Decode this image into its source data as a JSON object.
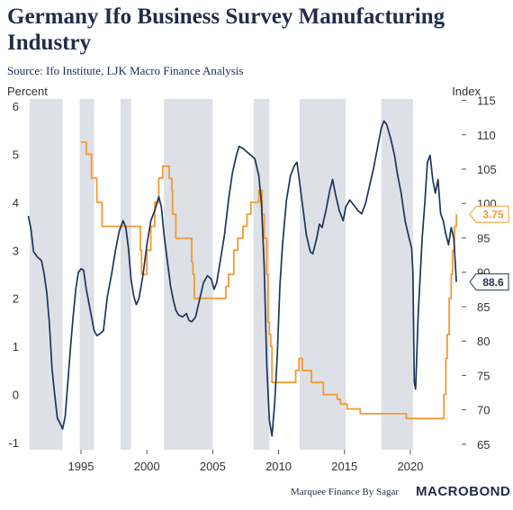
{
  "chart_data": {
    "type": "line",
    "title": "Germany Ifo Business Survey Manufacturing Industry",
    "subtitle": "Source: Ifo Institute, LJK Macro Finance Analysis",
    "left_axis": {
      "label": "Percent",
      "ylim": [
        -1.15,
        6.15
      ],
      "ticks": [
        -1,
        0,
        1,
        2,
        3,
        4,
        5,
        6
      ]
    },
    "right_axis": {
      "label": "Index",
      "ylim": [
        64.2,
        115.2
      ],
      "ticks": [
        65,
        70,
        75,
        80,
        85,
        90,
        95,
        100,
        105,
        110,
        115
      ]
    },
    "x_axis": {
      "xlim": [
        1990.9,
        2023.9
      ],
      "ticks": [
        1995,
        2000,
        2005,
        2010,
        2015,
        2020
      ]
    },
    "grid": false,
    "shaded_periods": [
      [
        1991.1,
        1993.6
      ],
      [
        1994.9,
        1996.0
      ],
      [
        1998.0,
        1998.8
      ],
      [
        2001.3,
        2005.0
      ],
      [
        2008.1,
        2009.3
      ],
      [
        2011.6,
        2015.1
      ],
      [
        2017.8,
        2020.2
      ]
    ],
    "series": [
      {
        "name": "",
        "axis": "left",
        "color": "#f39a32",
        "step": true,
        "last_label": "3.75",
        "points": [
          [
            1995.0,
            5.25
          ],
          [
            1995.4,
            5.0
          ],
          [
            1995.8,
            4.5
          ],
          [
            1996.2,
            4.0
          ],
          [
            1996.6,
            3.5
          ],
          [
            1999.3,
            3.5
          ],
          [
            1999.5,
            3.0
          ],
          [
            1999.6,
            2.5
          ],
          [
            2000.0,
            3.0
          ],
          [
            2000.3,
            3.5
          ],
          [
            2000.6,
            4.0
          ],
          [
            2000.9,
            4.5
          ],
          [
            2001.2,
            4.75
          ],
          [
            2001.7,
            4.5
          ],
          [
            2001.9,
            4.25
          ],
          [
            2001.95,
            3.75
          ],
          [
            2002.2,
            3.25
          ],
          [
            2003.4,
            2.75
          ],
          [
            2003.5,
            2.5
          ],
          [
            2003.6,
            2.0
          ],
          [
            2005.9,
            2.0
          ],
          [
            2006.0,
            2.25
          ],
          [
            2006.2,
            2.5
          ],
          [
            2006.6,
            3.0
          ],
          [
            2006.9,
            3.25
          ],
          [
            2007.3,
            3.5
          ],
          [
            2007.6,
            3.75
          ],
          [
            2007.9,
            4.0
          ],
          [
            2008.4,
            4.0
          ],
          [
            2008.5,
            4.25
          ],
          [
            2008.75,
            3.75
          ],
          [
            2008.9,
            3.25
          ],
          [
            2009.1,
            2.5
          ],
          [
            2009.2,
            1.5
          ],
          [
            2009.3,
            1.25
          ],
          [
            2009.4,
            1.0
          ],
          [
            2009.5,
            0.25
          ],
          [
            2011.3,
            0.5
          ],
          [
            2011.55,
            0.75
          ],
          [
            2011.8,
            0.5
          ],
          [
            2012.5,
            0.25
          ],
          [
            2013.4,
            0.0
          ],
          [
            2014.45,
            -0.1
          ],
          [
            2014.7,
            -0.2
          ],
          [
            2015.2,
            -0.3
          ],
          [
            2016.2,
            -0.4
          ],
          [
            2019.7,
            -0.5
          ],
          [
            2022.5,
            -0.5
          ],
          [
            2022.55,
            0.0
          ],
          [
            2022.7,
            0.75
          ],
          [
            2022.8,
            1.25
          ],
          [
            2022.95,
            2.0
          ],
          [
            2023.1,
            2.5
          ],
          [
            2023.2,
            3.0
          ],
          [
            2023.35,
            3.5
          ],
          [
            2023.5,
            3.75
          ]
        ]
      },
      {
        "name": "",
        "axis": "right",
        "color": "#1f3558",
        "step": false,
        "last_label": "88.6",
        "points": [
          [
            1991.0,
            98.2
          ],
          [
            1991.2,
            96.3
          ],
          [
            1991.4,
            93.0
          ],
          [
            1991.7,
            92.2
          ],
          [
            1992.0,
            91.7
          ],
          [
            1992.2,
            89.8
          ],
          [
            1992.4,
            87.0
          ],
          [
            1992.6,
            82.5
          ],
          [
            1992.8,
            76.0
          ],
          [
            1993.0,
            72.3
          ],
          [
            1993.2,
            68.8
          ],
          [
            1993.4,
            68.1
          ],
          [
            1993.6,
            67.2
          ],
          [
            1993.8,
            69.0
          ],
          [
            1994.0,
            74.0
          ],
          [
            1994.2,
            79.0
          ],
          [
            1994.4,
            83.5
          ],
          [
            1994.6,
            87.5
          ],
          [
            1994.8,
            90.0
          ],
          [
            1995.0,
            90.5
          ],
          [
            1995.2,
            90.3
          ],
          [
            1995.4,
            87.5
          ],
          [
            1995.7,
            84.5
          ],
          [
            1996.0,
            81.5
          ],
          [
            1996.2,
            80.8
          ],
          [
            1996.4,
            81.0
          ],
          [
            1996.7,
            81.5
          ],
          [
            1997.0,
            86.5
          ],
          [
            1997.3,
            89.5
          ],
          [
            1997.6,
            93.0
          ],
          [
            1997.9,
            96.0
          ],
          [
            1998.2,
            97.5
          ],
          [
            1998.4,
            96.5
          ],
          [
            1998.6,
            93.5
          ],
          [
            1998.8,
            89.0
          ],
          [
            1999.0,
            86.5
          ],
          [
            1999.2,
            85.3
          ],
          [
            1999.4,
            86.2
          ],
          [
            1999.7,
            89.5
          ],
          [
            2000.0,
            94.0
          ],
          [
            2000.3,
            97.5
          ],
          [
            2000.6,
            99.0
          ],
          [
            2000.9,
            101.0
          ],
          [
            2001.1,
            99.5
          ],
          [
            2001.3,
            95.5
          ],
          [
            2001.6,
            91.0
          ],
          [
            2001.8,
            88.0
          ],
          [
            2002.0,
            86.0
          ],
          [
            2002.2,
            84.5
          ],
          [
            2002.4,
            83.8
          ],
          [
            2002.7,
            83.5
          ],
          [
            2003.0,
            84.0
          ],
          [
            2003.2,
            83.0
          ],
          [
            2003.4,
            82.8
          ],
          [
            2003.7,
            83.5
          ],
          [
            2004.0,
            86.0
          ],
          [
            2004.3,
            88.5
          ],
          [
            2004.6,
            89.5
          ],
          [
            2004.9,
            89.0
          ],
          [
            2005.1,
            87.5
          ],
          [
            2005.3,
            88.5
          ],
          [
            2005.6,
            92.0
          ],
          [
            2005.9,
            95.5
          ],
          [
            2006.2,
            100.5
          ],
          [
            2006.5,
            104.5
          ],
          [
            2006.8,
            107.0
          ],
          [
            2007.0,
            108.3
          ],
          [
            2007.3,
            108.0
          ],
          [
            2007.6,
            107.5
          ],
          [
            2007.9,
            107.0
          ],
          [
            2008.2,
            106.5
          ],
          [
            2008.5,
            104.0
          ],
          [
            2008.7,
            100.0
          ],
          [
            2008.9,
            91.0
          ],
          [
            2009.1,
            76.5
          ],
          [
            2009.3,
            68.5
          ],
          [
            2009.5,
            66.2
          ],
          [
            2009.7,
            71.0
          ],
          [
            2009.9,
            78.0
          ],
          [
            2010.1,
            88.0
          ],
          [
            2010.3,
            94.0
          ],
          [
            2010.6,
            100.5
          ],
          [
            2010.9,
            104.0
          ],
          [
            2011.2,
            105.5
          ],
          [
            2011.4,
            106.0
          ],
          [
            2011.6,
            103.0
          ],
          [
            2011.9,
            98.5
          ],
          [
            2012.1,
            95.5
          ],
          [
            2012.4,
            93.0
          ],
          [
            2012.6,
            92.7
          ],
          [
            2012.9,
            95.0
          ],
          [
            2013.1,
            97.0
          ],
          [
            2013.3,
            96.5
          ],
          [
            2013.6,
            99.0
          ],
          [
            2013.9,
            102.0
          ],
          [
            2014.1,
            103.5
          ],
          [
            2014.3,
            101.5
          ],
          [
            2014.6,
            99.0
          ],
          [
            2014.9,
            97.5
          ],
          [
            2015.1,
            99.5
          ],
          [
            2015.4,
            100.5
          ],
          [
            2015.7,
            99.8
          ],
          [
            2016.0,
            99.0
          ],
          [
            2016.3,
            98.5
          ],
          [
            2016.6,
            100.0
          ],
          [
            2016.9,
            102.5
          ],
          [
            2017.2,
            105.0
          ],
          [
            2017.5,
            108.0
          ],
          [
            2017.8,
            111.0
          ],
          [
            2018.0,
            112.0
          ],
          [
            2018.2,
            111.5
          ],
          [
            2018.5,
            109.5
          ],
          [
            2018.8,
            107.0
          ],
          [
            2019.0,
            104.5
          ],
          [
            2019.3,
            101.5
          ],
          [
            2019.6,
            97.5
          ],
          [
            2019.9,
            95.0
          ],
          [
            2020.1,
            93.5
          ],
          [
            2020.2,
            90.0
          ],
          [
            2020.3,
            74.0
          ],
          [
            2020.4,
            73.0
          ],
          [
            2020.6,
            84.0
          ],
          [
            2020.9,
            95.0
          ],
          [
            2021.1,
            100.0
          ],
          [
            2021.3,
            106.0
          ],
          [
            2021.5,
            107.0
          ],
          [
            2021.7,
            103.5
          ],
          [
            2021.9,
            101.5
          ],
          [
            2022.1,
            103.5
          ],
          [
            2022.3,
            98.5
          ],
          [
            2022.5,
            97.5
          ],
          [
            2022.7,
            95.5
          ],
          [
            2022.9,
            94.0
          ],
          [
            2023.1,
            96.5
          ],
          [
            2023.3,
            95.0
          ],
          [
            2023.5,
            88.6
          ]
        ]
      }
    ]
  },
  "footer": {
    "credit": "Marquee Finance By Sagar",
    "brand": "MACROBOND"
  },
  "colors": {
    "title": "#1f2d4a",
    "shade": "#dde0e7",
    "orange": "#f39a32",
    "navy": "#1f3558"
  }
}
